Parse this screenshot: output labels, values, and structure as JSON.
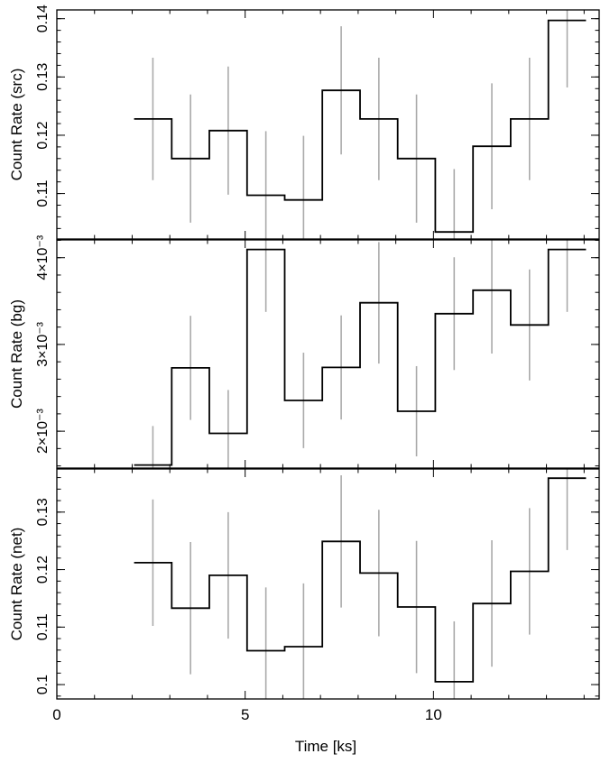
{
  "chart_data": [
    {
      "type": "line",
      "style": "step",
      "ylabel": "Count Rate (src)",
      "xlim": [
        0,
        14.4
      ],
      "ylim": [
        0.1022,
        0.1415
      ],
      "yticks": [
        0.11,
        0.12,
        0.13,
        0.14
      ],
      "yticklabels": [
        "0.11",
        "0.12",
        "0.13",
        "0.14"
      ],
      "colors": {
        "line": "#000000",
        "error_bar": "#aaaaaa"
      },
      "x": [
        2.55,
        3.55,
        4.55,
        5.55,
        6.55,
        7.55,
        8.55,
        9.55,
        10.55,
        11.55,
        12.55,
        13.55
      ],
      "values": [
        0.1228,
        0.116,
        0.1208,
        0.1097,
        0.1089,
        0.1277,
        0.1228,
        0.116,
        0.1034,
        0.1181,
        0.1228,
        0.1397
      ],
      "err": [
        0.0105,
        0.011,
        0.011,
        0.011,
        0.011,
        0.011,
        0.0105,
        0.011,
        0.0108,
        0.0108,
        0.0105,
        0.0115
      ]
    },
    {
      "type": "line",
      "style": "step",
      "ylabel": "Count Rate (bg)",
      "xlim": [
        0,
        14.4
      ],
      "ylim": [
        0.001575,
        0.004205
      ],
      "yticks": [
        0.002,
        0.003,
        0.004
      ],
      "yticklabels": [
        "2×10⁻³",
        "3×10⁻³",
        "4×10⁻³"
      ],
      "colors": {
        "line": "#000000",
        "error_bar": "#aaaaaa"
      },
      "x": [
        2.55,
        3.55,
        4.55,
        5.55,
        6.55,
        7.55,
        8.55,
        9.55,
        10.55,
        11.55,
        12.55,
        13.55
      ],
      "values": [
        0.00161,
        0.00273,
        0.001975,
        0.004095,
        0.002355,
        0.002735,
        0.00348,
        0.00223,
        0.003355,
        0.003625,
        0.003225,
        0.004095
      ],
      "err": [
        0.00045,
        0.0006,
        0.0005,
        0.00072,
        0.00055,
        0.0006,
        0.0007,
        0.00052,
        0.00065,
        0.00073,
        0.00064,
        0.00072
      ]
    },
    {
      "type": "line",
      "style": "step",
      "ylabel": "Count Rate (net)",
      "xlabel": "Time [ks]",
      "xlim": [
        0,
        14.4
      ],
      "ylim": [
        0.0975,
        0.1375
      ],
      "xticks": [
        0,
        5,
        10
      ],
      "xticklabels": [
        "0",
        "5",
        "10"
      ],
      "yticks": [
        0.1,
        0.11,
        0.12,
        0.13
      ],
      "yticklabels": [
        "0.1",
        "0.11",
        "0.12",
        "0.13"
      ],
      "colors": {
        "line": "#000000",
        "error_bar": "#aaaaaa"
      },
      "x": [
        2.55,
        3.55,
        4.55,
        5.55,
        6.55,
        7.55,
        8.55,
        9.55,
        10.55,
        11.55,
        12.55,
        13.55
      ],
      "values": [
        0.1212,
        0.1133,
        0.119,
        0.1059,
        0.1066,
        0.1249,
        0.1194,
        0.1135,
        0.1005,
        0.1141,
        0.1197,
        0.1359
      ],
      "err": [
        0.011,
        0.0115,
        0.011,
        0.011,
        0.011,
        0.0115,
        0.011,
        0.0115,
        0.0105,
        0.011,
        0.011,
        0.0125
      ]
    }
  ]
}
